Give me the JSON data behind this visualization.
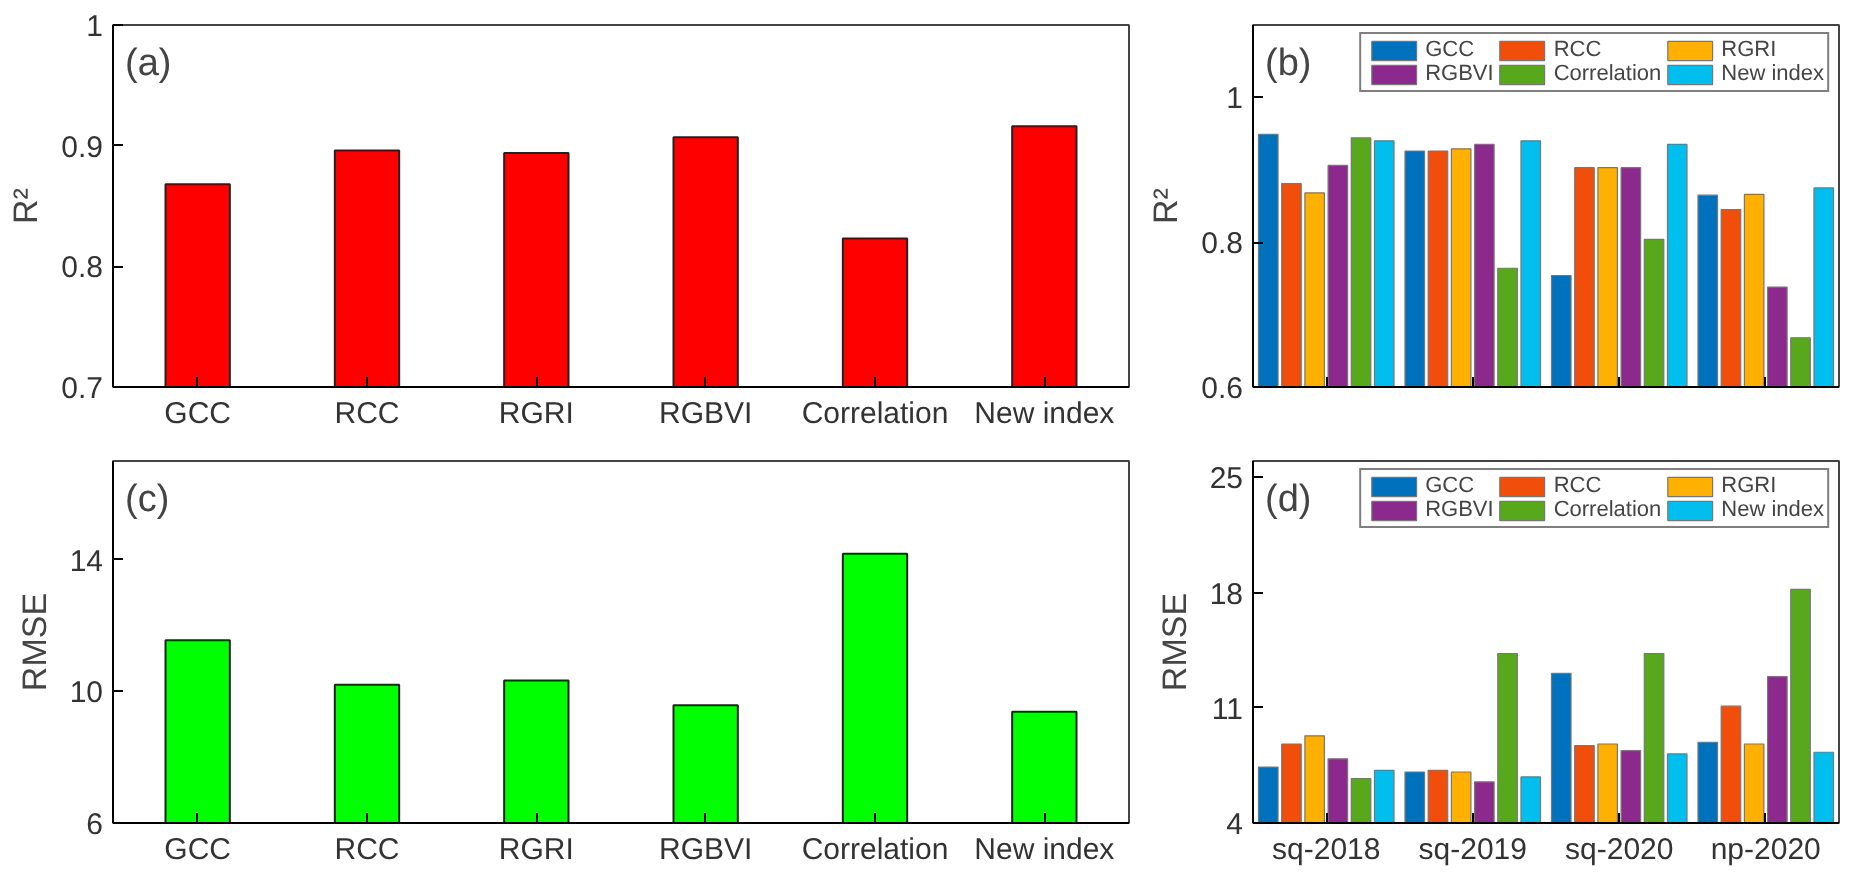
{
  "chart_data": [
    {
      "type": "bar",
      "annotations": [
        "(a)"
      ],
      "ylabel": "R²",
      "categories": [
        "GCC",
        "RCC",
        "RGRI",
        "RGBVI",
        "Correlation",
        "New index"
      ],
      "values": [
        0.868,
        0.896,
        0.894,
        0.907,
        0.823,
        0.916
      ],
      "color": "#ff0000",
      "ylim": [
        0.7,
        1
      ],
      "yticks": [
        0.7,
        0.8,
        0.9,
        1
      ],
      "grid": false,
      "legend": false
    },
    {
      "type": "bar",
      "annotations": [
        "(b)"
      ],
      "ylabel": "R²",
      "categories": [
        null,
        null,
        null,
        null
      ],
      "series": [
        {
          "name": "GCC",
          "color": "#0072bd",
          "values": [
            0.949,
            0.926,
            0.754,
            0.865
          ]
        },
        {
          "name": "RCC",
          "color": "#f04e0a",
          "values": [
            0.881,
            0.926,
            0.903,
            0.845
          ]
        },
        {
          "name": "RGRI",
          "color": "#ffb000",
          "values": [
            0.868,
            0.929,
            0.903,
            0.866
          ]
        },
        {
          "name": "RGBVI",
          "color": "#8b2a8c",
          "values": [
            0.906,
            0.935,
            0.903,
            0.738
          ]
        },
        {
          "name": "Correlation",
          "color": "#58a81c",
          "values": [
            0.944,
            0.764,
            0.804,
            0.668
          ]
        },
        {
          "name": "New index",
          "color": "#00bfee",
          "values": [
            0.94,
            0.94,
            0.935,
            0.875
          ]
        }
      ],
      "ylim": [
        0.6,
        1.1
      ],
      "yticks": [
        0.6,
        0.8,
        1
      ],
      "grid": false,
      "legend": "top"
    },
    {
      "type": "bar",
      "annotations": [
        "(c)"
      ],
      "ylabel": "RMSE",
      "categories": [
        "GCC",
        "RCC",
        "RGRI",
        "RGBVI",
        "Correlation",
        "New index"
      ],
      "values": [
        11.55,
        10.2,
        10.33,
        9.58,
        14.18,
        9.38
      ],
      "color": "#00ff00",
      "ylim": [
        6,
        17
      ],
      "yticks": [
        6,
        10,
        14
      ],
      "grid": false,
      "legend": false
    },
    {
      "type": "bar",
      "annotations": [
        "(d)"
      ],
      "ylabel": "RMSE",
      "categories": [
        "sq-2018",
        "sq-2019",
        "sq-2020",
        "np-2020"
      ],
      "series": [
        {
          "name": "GCC",
          "color": "#0072bd",
          "values": [
            7.4,
            7.1,
            13.1,
            8.9
          ]
        },
        {
          "name": "RCC",
          "color": "#f04e0a",
          "values": [
            8.8,
            7.2,
            8.7,
            11.1
          ]
        },
        {
          "name": "RGRI",
          "color": "#ffb000",
          "values": [
            9.3,
            7.1,
            8.8,
            8.8
          ]
        },
        {
          "name": "RGBVI",
          "color": "#8b2a8c",
          "values": [
            7.9,
            6.5,
            8.4,
            12.9
          ]
        },
        {
          "name": "Correlation",
          "color": "#58a81c",
          "values": [
            6.7,
            14.3,
            14.3,
            18.2
          ]
        },
        {
          "name": "New index",
          "color": "#00bfee",
          "values": [
            7.2,
            6.8,
            8.2,
            8.3
          ]
        }
      ],
      "ylim": [
        4,
        26
      ],
      "yticks": [
        4,
        11,
        18,
        25
      ],
      "grid": false,
      "legend": "top"
    }
  ]
}
